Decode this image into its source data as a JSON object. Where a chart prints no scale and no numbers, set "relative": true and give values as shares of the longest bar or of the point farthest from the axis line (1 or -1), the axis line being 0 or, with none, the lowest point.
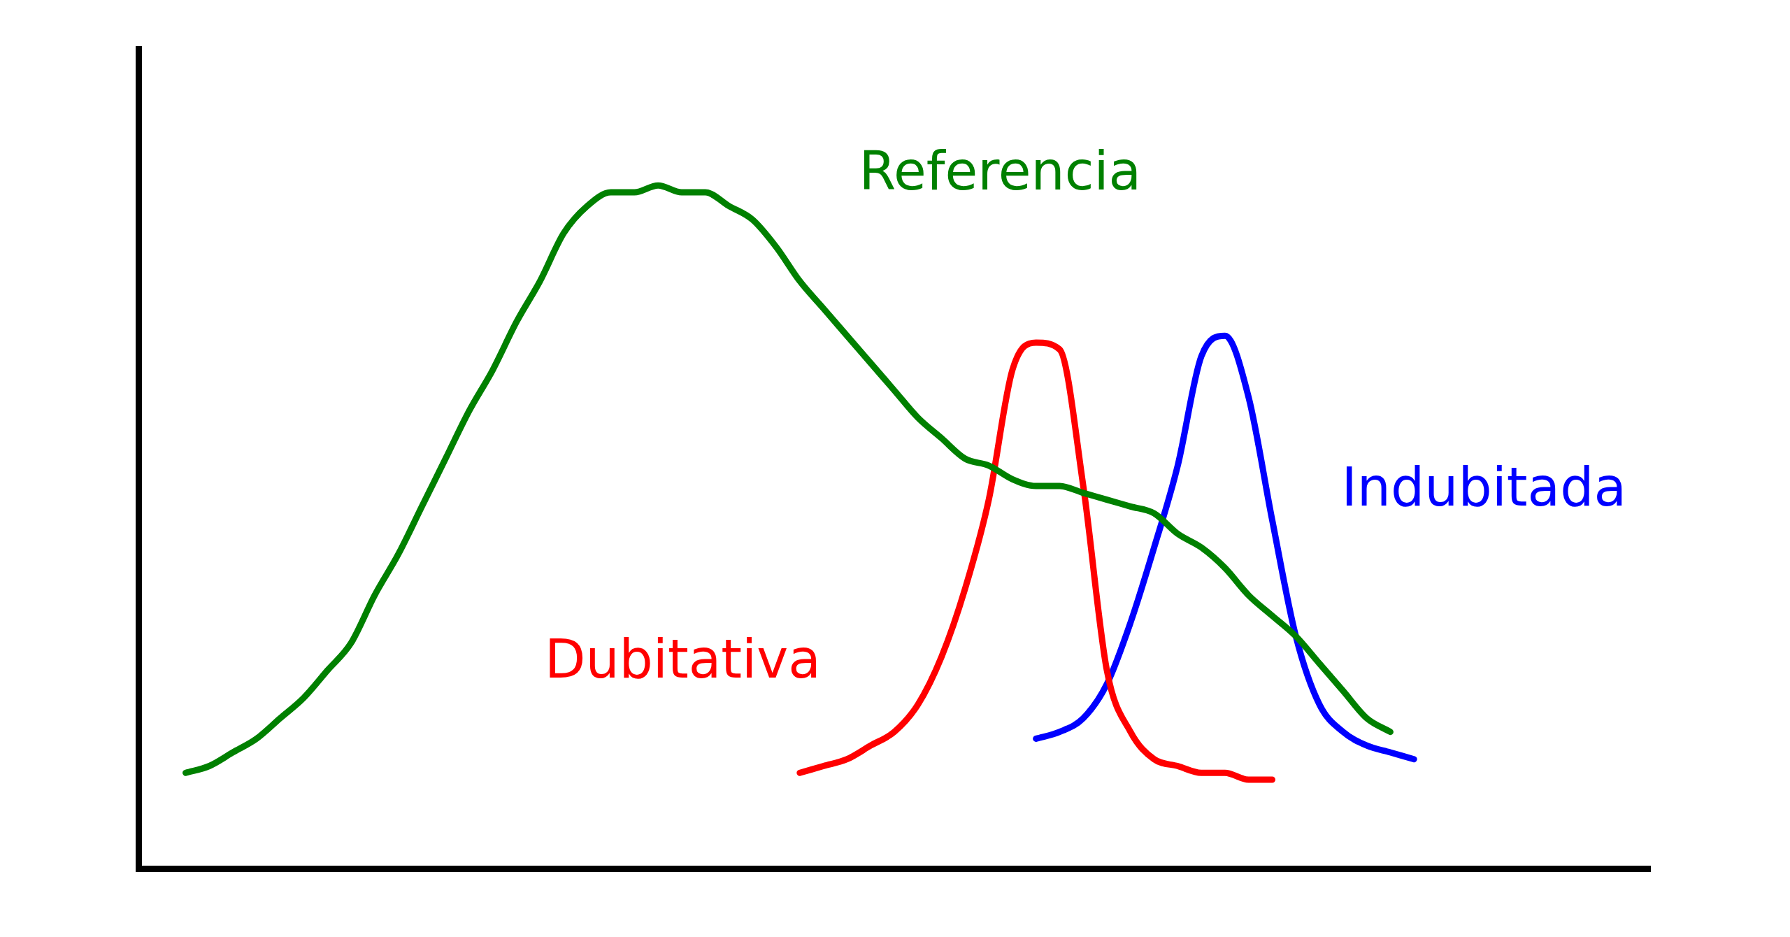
{
  "chart_data": {
    "type": "line",
    "relative": true,
    "tick_labels": false,
    "grid": false,
    "legend": false,
    "marker": "none",
    "line_style": "solid",
    "categories": [
      null,
      null,
      null,
      null,
      null,
      null,
      null,
      null,
      null,
      null,
      null,
      null,
      null,
      null,
      null,
      null,
      null,
      null,
      null,
      null,
      null,
      null,
      null,
      null,
      null,
      null,
      null,
      null,
      null,
      null,
      null,
      null,
      null,
      null,
      null,
      null,
      null,
      null,
      null,
      null,
      null,
      null,
      null,
      null,
      null,
      null,
      null,
      null,
      null,
      null,
      null,
      null,
      null,
      null,
      null,
      null,
      null,
      null,
      null,
      null,
      null,
      null,
      null,
      null,
      null
    ],
    "series": [
      {
        "name": "Referencia",
        "color": "#008000",
        "values": [
          null,
          null,
          0.14,
          0.15,
          0.17,
          0.19,
          0.22,
          0.25,
          0.29,
          0.33,
          0.4,
          0.46,
          0.53,
          0.6,
          0.67,
          0.73,
          0.8,
          0.86,
          0.93,
          0.97,
          0.99,
          0.99,
          1,
          0.99,
          0.99,
          0.97,
          0.95,
          0.91,
          0.86,
          0.82,
          0.78,
          0.74,
          0.7,
          0.66,
          0.63,
          0.6,
          0.59,
          0.57,
          0.56,
          0.56,
          0.55,
          0.54,
          0.53,
          0.52,
          0.49,
          0.47,
          0.44,
          0.4,
          0.37,
          0.34,
          0.3,
          0.26,
          0.22,
          0.2,
          null,
          null,
          null,
          null,
          null,
          null,
          null,
          null,
          null,
          null,
          null
        ]
      },
      {
        "name": "Dubitativa",
        "color": "#ff0000",
        "values": [
          null,
          null,
          null,
          null,
          null,
          null,
          null,
          null,
          null,
          null,
          null,
          null,
          null,
          null,
          null,
          null,
          null,
          null,
          null,
          null,
          null,
          null,
          null,
          null,
          null,
          null,
          null,
          null,
          0.14,
          0.15,
          0.16,
          0.18,
          0.2,
          0.24,
          0.31,
          0.41,
          0.54,
          0.73,
          0.77,
          0.76,
          0.56,
          0.29,
          0.2,
          0.16,
          0.15,
          0.14,
          0.14,
          0.13,
          0.13,
          null,
          null,
          null,
          null,
          null,
          null,
          null,
          null,
          null,
          null,
          null,
          null,
          null,
          null,
          null,
          null
        ]
      },
      {
        "name": "Indubitada",
        "color": "#0000ff",
        "values": [
          null,
          null,
          null,
          null,
          null,
          null,
          null,
          null,
          null,
          null,
          null,
          null,
          null,
          null,
          null,
          null,
          null,
          null,
          null,
          null,
          null,
          null,
          null,
          null,
          null,
          null,
          null,
          null,
          null,
          null,
          null,
          null,
          null,
          null,
          null,
          null,
          null,
          null,
          0.19,
          0.2,
          0.22,
          0.27,
          0.36,
          0.47,
          0.59,
          0.75,
          0.78,
          0.69,
          0.51,
          0.34,
          0.24,
          0.2,
          0.18,
          0.17,
          0.16,
          null,
          null,
          null,
          null,
          null,
          null,
          null,
          null,
          null,
          null
        ]
      }
    ]
  }
}
